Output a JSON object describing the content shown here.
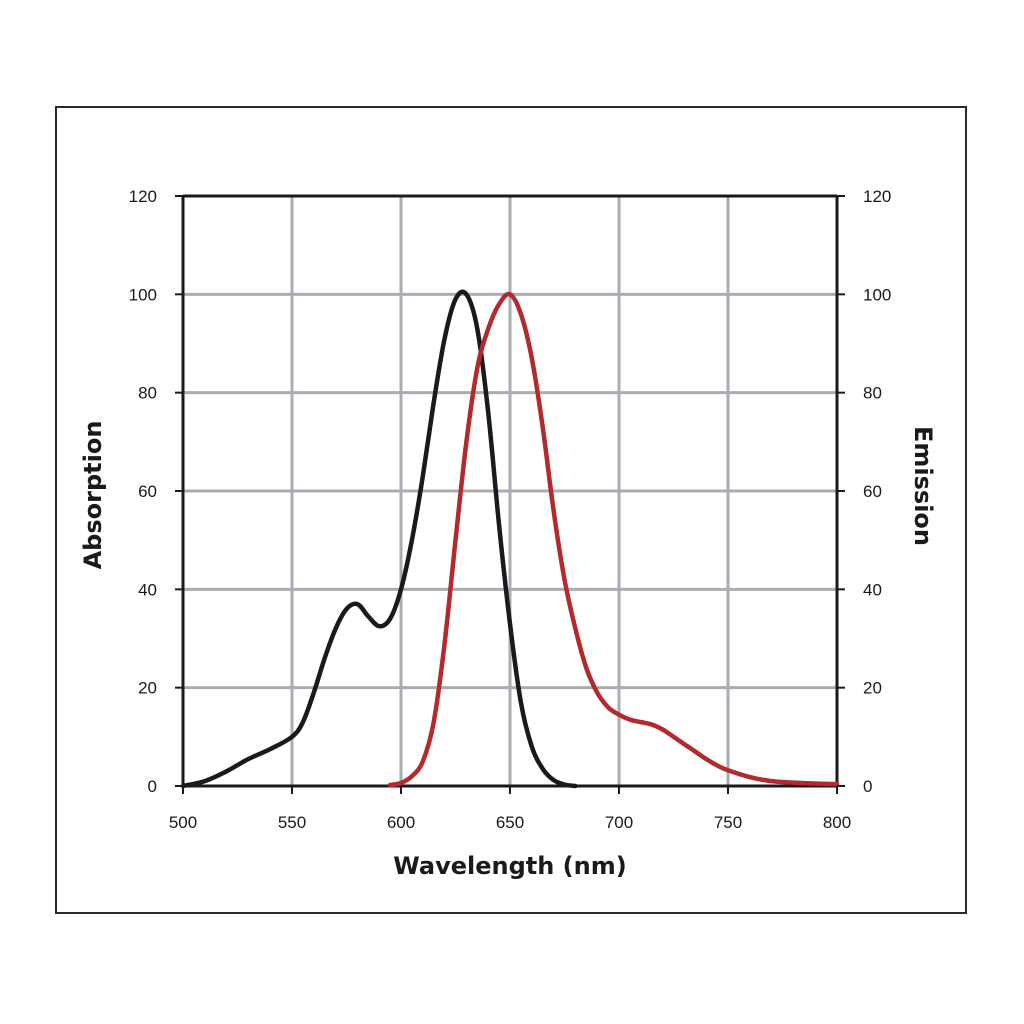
{
  "chart_data": {
    "type": "line",
    "title": "",
    "xlabel": "Wavelength (nm)",
    "ylabel_left": "Absorption",
    "ylabel_right": "Emission",
    "xlim": [
      500,
      800
    ],
    "ylim": [
      0,
      120
    ],
    "x_ticks": [
      500,
      550,
      600,
      650,
      700,
      750,
      800
    ],
    "y_ticks": [
      0,
      20,
      40,
      60,
      80,
      100,
      120
    ],
    "grid": true,
    "legend": "none",
    "series": [
      {
        "key": "absorption",
        "color": "#1a1a1a",
        "axis": "left",
        "x": [
          500,
          510,
          520,
          530,
          540,
          550,
          555,
          560,
          565,
          570,
          575,
          580,
          585,
          590,
          595,
          600,
          605,
          610,
          615,
          620,
          625,
          630,
          635,
          640,
          645,
          650,
          655,
          660,
          665,
          670,
          675,
          680
        ],
        "y": [
          0,
          1,
          3,
          5.5,
          7.5,
          10,
          13,
          19,
          26,
          32,
          36,
          37,
          34.5,
          32.5,
          34,
          40,
          50,
          63,
          78,
          91,
          99,
          100,
          93,
          76,
          53,
          33,
          17,
          8,
          3.5,
          1.2,
          0.3,
          0
        ]
      },
      {
        "key": "emission",
        "color": "#b22a2e",
        "axis": "right",
        "x": [
          595,
          600,
          605,
          610,
          615,
          620,
          625,
          630,
          635,
          640,
          645,
          650,
          655,
          660,
          665,
          670,
          675,
          680,
          685,
          690,
          695,
          700,
          705,
          710,
          715,
          720,
          725,
          730,
          735,
          740,
          745,
          750,
          760,
          770,
          780,
          790,
          800
        ],
        "y": [
          0.2,
          0.6,
          2,
          5,
          13,
          29,
          50,
          70,
          85,
          93,
          98,
          100,
          96,
          87,
          73,
          56,
          42,
          32,
          24,
          19,
          16,
          14.5,
          13.5,
          13,
          12.5,
          11.5,
          10,
          8.5,
          7,
          5.5,
          4.2,
          3.2,
          1.8,
          1,
          0.7,
          0.5,
          0.4
        ]
      }
    ]
  }
}
